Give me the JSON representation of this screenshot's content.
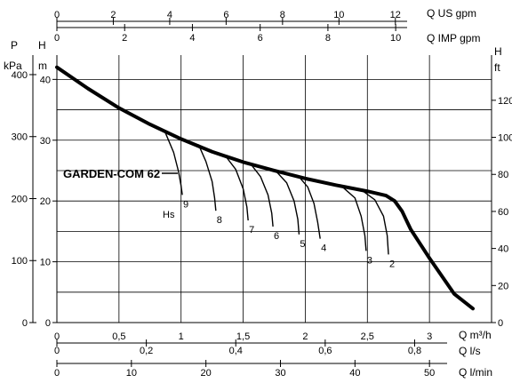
{
  "chart_data": {
    "type": "line",
    "title": "GARDEN-COM 62",
    "grid": true,
    "x": {
      "label": "Q m³/h",
      "range": [
        0,
        3.5
      ],
      "ticks": [
        "0",
        "0,5",
        "1",
        "1,5",
        "2",
        "2,5",
        "3"
      ],
      "tick_values": [
        0,
        0.5,
        1,
        1.5,
        2,
        2.5,
        3
      ]
    },
    "x_ls": {
      "label": "Q l/s",
      "range": [
        0,
        0.972
      ],
      "ticks": [
        "0",
        "0,2",
        "0,4",
        "0,6",
        "0,8"
      ],
      "tick_values": [
        0,
        0.2,
        0.4,
        0.6,
        0.8
      ]
    },
    "x_lmin": {
      "label": "Q l/min",
      "range": [
        0,
        58.33
      ],
      "ticks": [
        "0",
        "10",
        "20",
        "30",
        "40",
        "50"
      ],
      "tick_values": [
        0,
        10,
        20,
        30,
        40,
        50
      ]
    },
    "x_usgpm": {
      "label": "Q US gpm",
      "range": [
        0,
        15.41
      ],
      "ticks": [
        "0",
        "2",
        "4",
        "6",
        "8",
        "10",
        "12"
      ],
      "tick_values": [
        0,
        2,
        4,
        6,
        8,
        10,
        12
      ]
    },
    "x_impgpm": {
      "label": "Q IMP gpm",
      "range": [
        0,
        12.83
      ],
      "ticks": [
        "0",
        "2",
        "4",
        "6",
        "8",
        "10"
      ],
      "tick_values": [
        0,
        2,
        4,
        6,
        8,
        10
      ]
    },
    "y_m": {
      "label": "H",
      "unit": "m",
      "range": [
        0,
        44
      ],
      "ticks": [
        "0",
        "10",
        "20",
        "30",
        "40"
      ],
      "tick_values": [
        0,
        10,
        20,
        30,
        40
      ]
    },
    "y_kpa": {
      "label": "P",
      "unit": "kPa",
      "range": [
        0,
        431.5
      ],
      "ticks": [
        "0",
        "100",
        "200",
        "300",
        "400"
      ],
      "tick_values": [
        0,
        100,
        200,
        300,
        400
      ]
    },
    "y_ft": {
      "label": "H",
      "unit": "ft",
      "range": [
        0,
        144.4
      ],
      "ticks": [
        "0",
        "20",
        "40",
        "60",
        "80",
        "100",
        "120"
      ],
      "tick_values": [
        0,
        20,
        40,
        60,
        80,
        100,
        120
      ]
    },
    "series": [
      {
        "name": "GARDEN-COM 62",
        "x": [
          0,
          0.25,
          0.5,
          0.75,
          1.0,
          1.25,
          1.5,
          1.75,
          2.0,
          2.25,
          2.5,
          2.65,
          2.72,
          2.78,
          2.81,
          2.85,
          3.0,
          3.2,
          3.35
        ],
        "y": [
          42.0,
          38.5,
          35.3,
          32.6,
          30.2,
          28.1,
          26.4,
          25.0,
          23.7,
          22.6,
          21.6,
          20.9,
          20.0,
          18.3,
          17.0,
          15.3,
          10.6,
          4.7,
          2.3
        ]
      }
    ],
    "hs_label": "Hs",
    "suction_curves": [
      {
        "label": "9",
        "x": [
          0.87,
          0.94,
          0.98,
          1.0,
          1.01
        ],
        "y": [
          31.4,
          28.0,
          24.8,
          22.5,
          21.0
        ]
      },
      {
        "label": "8",
        "x": [
          1.14,
          1.2,
          1.25,
          1.27,
          1.28
        ],
        "y": [
          29.3,
          26.5,
          23.2,
          20.5,
          18.4
        ]
      },
      {
        "label": "7",
        "x": [
          1.35,
          1.44,
          1.5,
          1.53,
          1.54
        ],
        "y": [
          27.6,
          25.2,
          22.0,
          19.0,
          16.8
        ]
      },
      {
        "label": "6",
        "x": [
          1.56,
          1.64,
          1.7,
          1.73,
          1.74
        ],
        "y": [
          26.1,
          24.0,
          21.0,
          18.0,
          15.8
        ]
      },
      {
        "label": "5",
        "x": [
          1.76,
          1.85,
          1.91,
          1.94,
          1.95
        ],
        "y": [
          25.0,
          23.0,
          20.0,
          17.0,
          14.5
        ]
      },
      {
        "label": "4",
        "x": [
          1.94,
          2.02,
          2.07,
          2.1,
          2.12
        ],
        "y": [
          24.2,
          22.3,
          19.6,
          16.5,
          13.8
        ]
      },
      {
        "label": "3",
        "x": [
          2.3,
          2.4,
          2.45,
          2.48,
          2.49
        ],
        "y": [
          22.3,
          20.5,
          17.5,
          14.3,
          11.8
        ]
      },
      {
        "label": "2",
        "x": [
          2.46,
          2.56,
          2.63,
          2.66,
          2.67
        ],
        "y": [
          21.7,
          20.2,
          17.5,
          14.3,
          11.2
        ]
      }
    ]
  }
}
